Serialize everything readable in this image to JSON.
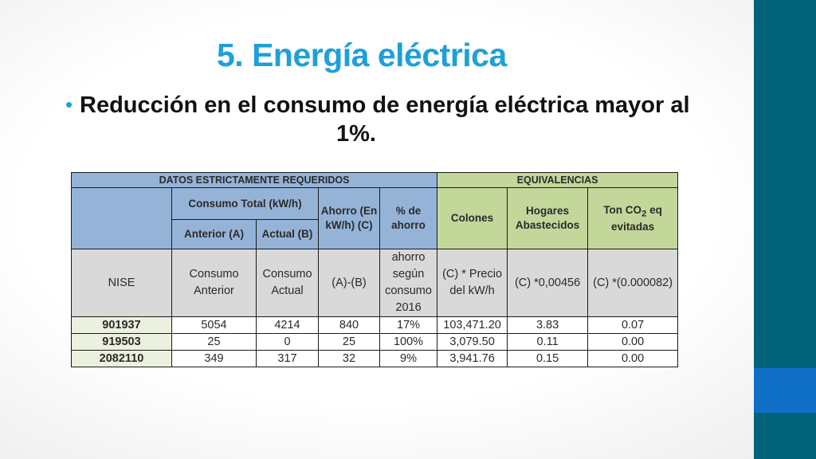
{
  "slide": {
    "title": "5. Energía eléctrica",
    "bullet_line1": "Reducción en el consumo de energía eléctrica mayor al",
    "bullet_line2": "1%."
  },
  "table": {
    "group_left": "DATOS ESTRICTAMENTE REQUERIDOS",
    "group_right": "EQUIVALENCIAS",
    "col_consumo_total": "Consumo Total (kW/h)",
    "col_anterior": "Anterior (A)",
    "col_actual": "Actual (B)",
    "col_ahorro": "Ahorro (En kW/h) (C)",
    "col_pct_ahorro": "% de ahorro",
    "col_colones": "Colones",
    "col_hogares": "Hogares Abastecidos",
    "col_ton_co2_prefix": "Ton CO",
    "col_ton_co2_sub": "2",
    "col_ton_co2_suffix": " eq evitadas",
    "row_formula": {
      "nise": "NISE",
      "anterior": "Consumo Anterior",
      "actual": "Consumo Actual",
      "ahorro": "(A)-(B)",
      "pct": "ahorro según consumo 2016",
      "colones": "(C) * Precio del kW/h",
      "hogares": "(C) *0,00456",
      "co2": "(C) *(0.000082)"
    },
    "rows": [
      {
        "nise": "901937",
        "anterior": "5054",
        "actual": "4214",
        "ahorro": "840",
        "pct": "17%",
        "colones": "103,471.20",
        "hogares": "3.83",
        "co2": "0.07"
      },
      {
        "nise": "919503",
        "anterior": "25",
        "actual": "0",
        "ahorro": "25",
        "pct": "100%",
        "colones": "3,079.50",
        "hogares": "0.11",
        "co2": "0.00"
      },
      {
        "nise": "2082110",
        "anterior": "349",
        "actual": "317",
        "ahorro": "32",
        "pct": "9%",
        "colones": "3,941.76",
        "hogares": "0.15",
        "co2": "0.00"
      }
    ]
  },
  "colors": {
    "title": "#1ea0d8",
    "sidebar": "#00637a",
    "sidebar_accent": "#0f6fc6",
    "header_blue": "#95b3d7",
    "header_green": "#c4d79b",
    "formula_gray": "#d9d9d9",
    "nise_cell": "#ebf1de"
  }
}
